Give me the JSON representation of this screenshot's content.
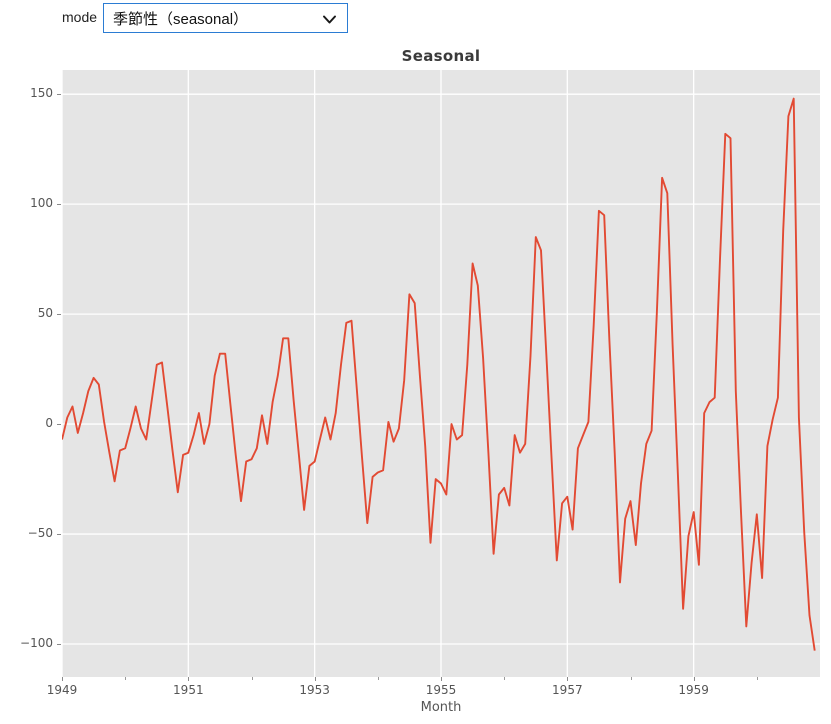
{
  "toolbar": {
    "mode_label": "mode",
    "mode_value": "季節性（seasonal）"
  },
  "chart_data": {
    "type": "line",
    "title": "Seasonal",
    "xlabel": "Month",
    "series_name": "seasonal",
    "x_start": "1949-01",
    "x_freq": "monthly",
    "n_points": 144,
    "xlim_months": [
      0,
      144
    ],
    "ylim": [
      -115,
      161
    ],
    "grid": true,
    "x_major_tick_years": [
      1949,
      1951,
      1953,
      1955,
      1957,
      1959
    ],
    "x_minor_tick_years": [
      1950,
      1952,
      1954,
      1956,
      1958,
      1960
    ],
    "x_tick_labels": [
      "1949",
      "1951",
      "1953",
      "1955",
      "1957",
      "1959"
    ],
    "y_tick_values": [
      150,
      100,
      50,
      0,
      -50,
      -100
    ],
    "y_tick_labels": [
      "150",
      "100",
      "50",
      "0",
      "−50",
      "−100"
    ],
    "colors": {
      "line": "#E24A33",
      "plot_background": "#E5E5E5",
      "grid": "#FFFFFF",
      "tick_label": "#555555",
      "title": "#3A3A3A",
      "select_border": "#2B7CD3"
    },
    "values": [
      -7,
      3,
      8,
      -4,
      5,
      15,
      21,
      18,
      1,
      -13,
      -26,
      -12,
      -11,
      -2,
      8,
      -2,
      -7,
      10,
      27,
      28,
      8,
      -12,
      -31,
      -14,
      -13,
      -5,
      5,
      -9,
      0,
      22,
      32,
      32,
      9,
      -14,
      -35,
      -17,
      -16,
      -11,
      4,
      -9,
      10,
      22,
      39,
      39,
      11,
      -14,
      -39,
      -19,
      -17,
      -7,
      3,
      -7,
      5,
      27,
      46,
      47,
      16,
      -15,
      -45,
      -24,
      -22,
      -21,
      1,
      -8,
      -2,
      20,
      59,
      55,
      22,
      -10,
      -54,
      -25,
      -27,
      -32,
      0,
      -7,
      -5,
      27,
      73,
      63,
      30,
      -13,
      -59,
      -32,
      -29,
      -37,
      -5,
      -13,
      -9,
      31,
      85,
      79,
      32,
      -15,
      -62,
      -36,
      -33,
      -48,
      -11,
      -5,
      1,
      45,
      97,
      95,
      38,
      -13,
      -72,
      -43,
      -35,
      -55,
      -27,
      -9,
      -3,
      50,
      112,
      105,
      36,
      -23,
      -84,
      -51,
      -40,
      -64,
      5,
      10,
      12,
      75,
      132,
      130,
      15,
      -40,
      -92,
      -63,
      -41,
      -70,
      -10,
      2,
      12,
      88,
      140,
      148,
      3,
      -49,
      -87,
      -103
    ]
  }
}
